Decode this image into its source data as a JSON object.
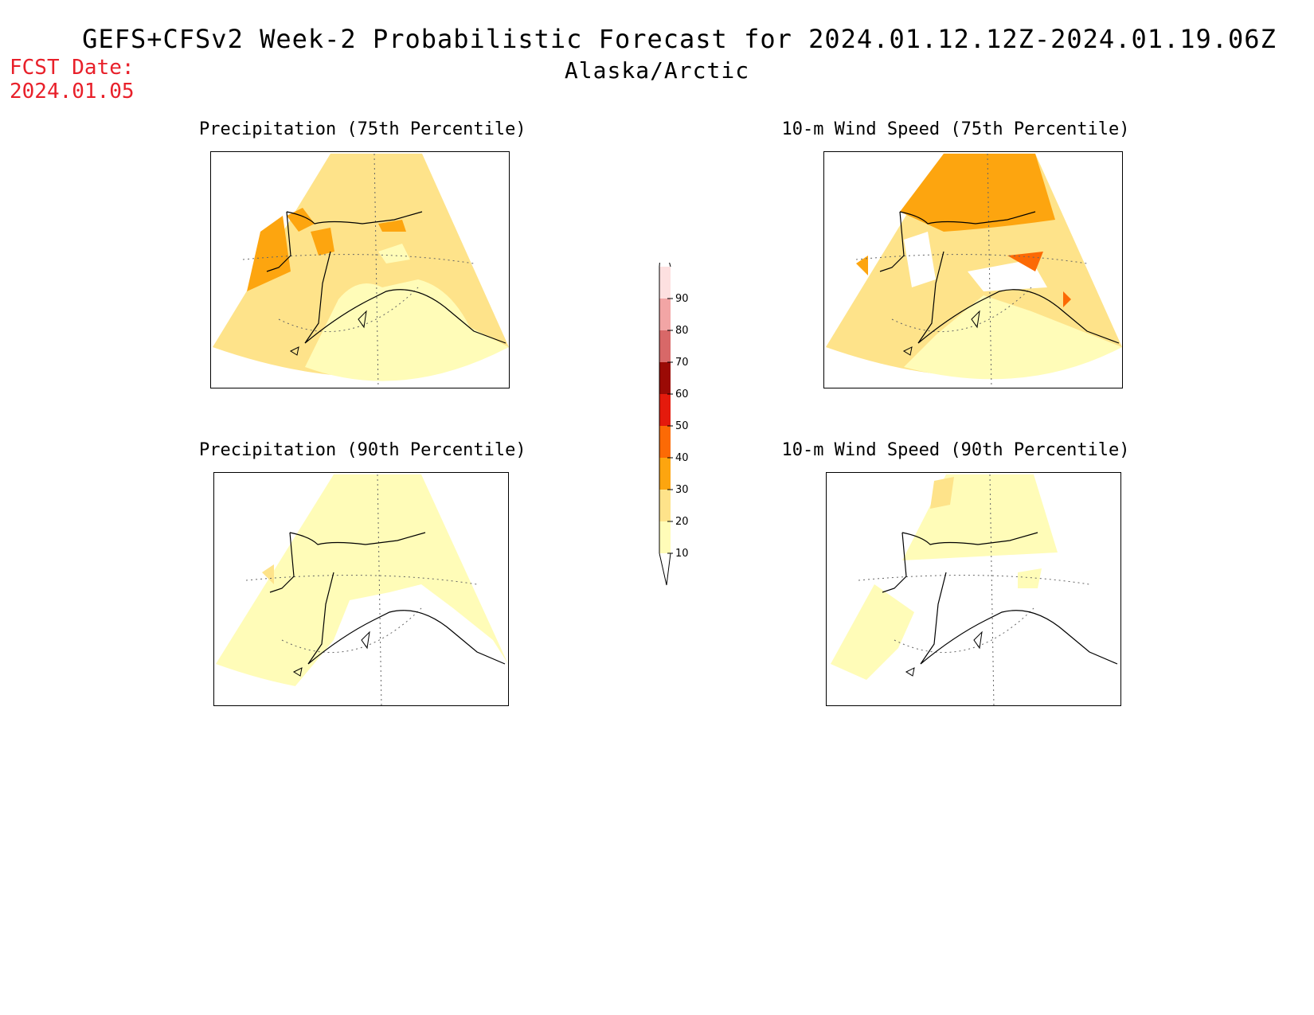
{
  "header": {
    "title": "GEFS+CFSv2 Week-2 Probabilistic Forecast for 2024.01.12.12Z-2024.01.19.06Z",
    "region": "Alaska/Arctic",
    "fcst_label": "FCST Date:",
    "fcst_date": "2024.01.05"
  },
  "panels": [
    {
      "title": "Precipitation (75th Percentile)"
    },
    {
      "title": "10-m Wind Speed (75th Percentile)"
    },
    {
      "title": "Precipitation (90th Percentile)"
    },
    {
      "title": "10-m Wind Speed (90th Percentile)"
    }
  ],
  "colorbar": {
    "levels": [
      "10",
      "20",
      "30",
      "40",
      "50",
      "60",
      "70",
      "80",
      "90"
    ],
    "colors": [
      "#fffcb8",
      "#fee38a",
      "#fda50f",
      "#fc6a05",
      "#e41a0c",
      "#9b0a05",
      "#d86868",
      "#f2a5a5",
      "#fde0e0"
    ]
  }
}
